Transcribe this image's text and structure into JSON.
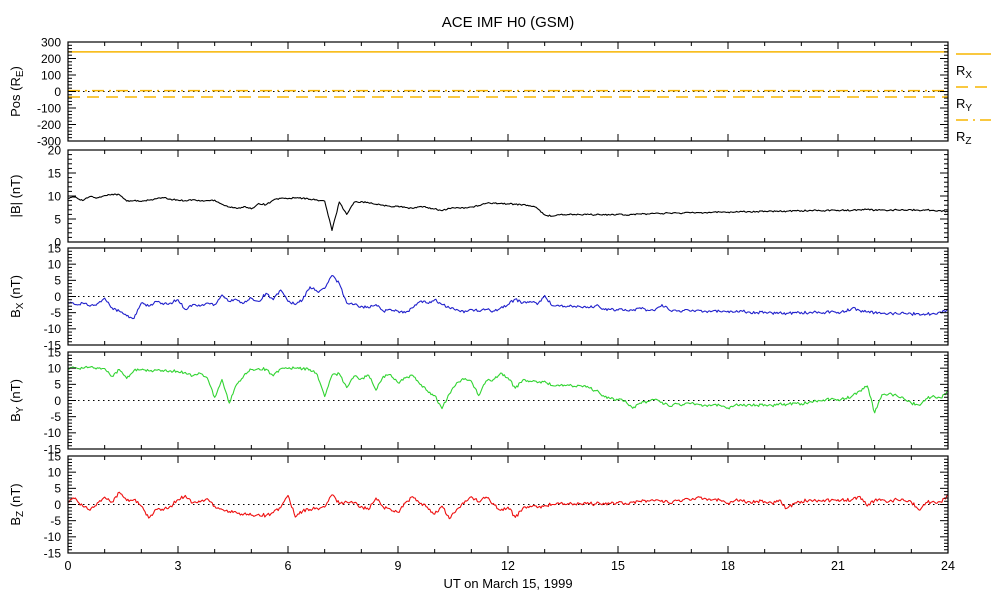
{
  "chart_data": {
    "type": "line",
    "title": "ACE IMF H0 (GSM)",
    "xlabel": "UT on March 15, 1999",
    "x_axis": {
      "min": 0,
      "max": 24,
      "major_ticks": [
        0,
        3,
        6,
        9,
        12,
        15,
        18,
        21,
        24
      ],
      "minor_step": 1
    },
    "sample_dt": 0.2,
    "axis_color": "#000000",
    "panels": [
      {
        "id": "pos",
        "ylabel": {
          "pre": "Pos (R",
          "sub": "E",
          "post": ")"
        },
        "ylim": [
          -300,
          300
        ],
        "yticks": [
          -300,
          -200,
          -100,
          0,
          100,
          200,
          300
        ],
        "yminor_step": 20,
        "zero_line": true,
        "color": "#f7b500",
        "ref_lines": [
          {
            "name": "R_X",
            "value": 240,
            "style": "solid"
          },
          {
            "name": "R_Y",
            "value": -33,
            "style": "dashed"
          },
          {
            "name": "R_Z",
            "value": 5,
            "style": "dashdot"
          }
        ]
      },
      {
        "id": "bmag",
        "ylabel": {
          "pre": "|B| (nT)",
          "sub": "",
          "post": ""
        },
        "ylim": [
          0,
          20
        ],
        "yticks": [
          0,
          5,
          10,
          15,
          20
        ],
        "yminor_step": 1,
        "zero_line": false,
        "color": "#000000",
        "noise": 0.16,
        "values": [
          9.5,
          9.8,
          9.0,
          9.9,
          9.6,
          10.1,
          10.4,
          10.3,
          8.9,
          9.0,
          8.8,
          9.1,
          9.4,
          9.6,
          9.3,
          9.1,
          9.0,
          9.2,
          8.9,
          9.0,
          9.1,
          8.2,
          7.6,
          7.3,
          7.7,
          7.2,
          8.4,
          8.1,
          9.1,
          9.5,
          9.4,
          9.6,
          9.5,
          9.3,
          9.1,
          8.9,
          2.5,
          8.7,
          6.0,
          8.6,
          8.8,
          8.5,
          8.2,
          8.0,
          7.7,
          7.8,
          7.5,
          7.3,
          7.7,
          7.5,
          7.2,
          6.8,
          7.3,
          7.5,
          7.3,
          7.6,
          7.9,
          8.4,
          8.5,
          8.4,
          8.3,
          8.2,
          8.1,
          7.9,
          7.3,
          5.9,
          5.6,
          5.9,
          5.9,
          6.0,
          5.9,
          6.0,
          5.9,
          6.0,
          5.9,
          6.0,
          5.9,
          6.0,
          6.1,
          6.1,
          6.2,
          6.2,
          6.3,
          6.3,
          6.3,
          6.4,
          6.4,
          6.4,
          6.5,
          6.5,
          6.5,
          6.5,
          6.6,
          6.6,
          6.6,
          6.7,
          6.7,
          6.7,
          6.7,
          6.8,
          6.8,
          6.8,
          6.9,
          6.8,
          6.9,
          6.9,
          6.9,
          6.9,
          7.0,
          7.1,
          6.9,
          7.0,
          6.9,
          7.0,
          6.9,
          7.0,
          6.9,
          7.0,
          6.9,
          6.8,
          6.6
        ]
      },
      {
        "id": "bx",
        "ylabel": {
          "pre": "B",
          "sub": "X",
          "post": " (nT)"
        },
        "ylim": [
          -15,
          15
        ],
        "yticks": [
          -15,
          -10,
          -5,
          0,
          5,
          10,
          15
        ],
        "yminor_step": 1,
        "zero_line": true,
        "color": "#2222cc",
        "noise": 0.45,
        "values": [
          -1.8,
          -2.5,
          -2.0,
          -3.0,
          -2.2,
          -0.5,
          -3.5,
          -4.5,
          -6.0,
          -6.8,
          -2.0,
          -3.0,
          -1.5,
          -2.5,
          -2.0,
          -1.0,
          -4.0,
          -2.5,
          -3.0,
          -2.0,
          -2.5,
          0.5,
          -1.5,
          -1.0,
          -2.0,
          -0.5,
          -1.5,
          1.0,
          -1.0,
          2.0,
          -1.5,
          -2.5,
          -1.0,
          3.0,
          1.5,
          2.5,
          6.5,
          4.0,
          -2.0,
          -2.5,
          -3.0,
          -3.5,
          -2.5,
          -4.5,
          -4.0,
          -4.5,
          -5.0,
          -3.5,
          -1.5,
          -2.0,
          -1.0,
          -2.5,
          -3.5,
          -4.0,
          -5.0,
          -4.0,
          -4.5,
          -4.0,
          -4.5,
          -3.5,
          -2.5,
          -0.8,
          -2.0,
          -1.5,
          -2.5,
          0.3,
          -2.8,
          -3.0,
          -3.2,
          -3.0,
          -3.3,
          -3.5,
          -2.8,
          -3.8,
          -4.0,
          -4.2,
          -4.0,
          -4.3,
          -3.5,
          -4.2,
          -4.4,
          -2.5,
          -4.2,
          -4.5,
          -4.3,
          -4.5,
          -4.2,
          -4.6,
          -4.4,
          -4.7,
          -4.5,
          -4.8,
          -4.6,
          -4.9,
          -5.0,
          -4.8,
          -5.1,
          -5.0,
          -5.2,
          -5.0,
          -4.9,
          -5.1,
          -4.8,
          -5.0,
          -4.7,
          -4.9,
          -4.6,
          -3.5,
          -4.4,
          -4.8,
          -5.0,
          -5.2,
          -5.1,
          -5.3,
          -5.2,
          -5.4,
          -5.3,
          -5.5,
          -5.2,
          -4.8,
          -4.2
        ]
      },
      {
        "id": "by",
        "ylabel": {
          "pre": "B",
          "sub": "Y",
          "post": " (nT)"
        },
        "ylim": [
          -15,
          15
        ],
        "yticks": [
          -15,
          -10,
          -5,
          0,
          5,
          10,
          15
        ],
        "yminor_step": 1,
        "zero_line": true,
        "color": "#33d433",
        "noise": 0.45,
        "values": [
          9.8,
          10.2,
          10.0,
          10.3,
          10.1,
          9.9,
          7.5,
          9.6,
          6.8,
          9.3,
          9.5,
          9.2,
          9.4,
          9.0,
          9.2,
          8.9,
          8.7,
          7.6,
          8.4,
          7.0,
          1.0,
          6.5,
          -0.8,
          5.0,
          7.8,
          9.6,
          9.9,
          9.7,
          7.6,
          9.8,
          9.9,
          10.0,
          9.8,
          9.6,
          8.0,
          1.2,
          7.8,
          8.3,
          4.0,
          7.5,
          6.8,
          7.8,
          3.2,
          7.5,
          8.0,
          5.5,
          7.0,
          7.8,
          5.0,
          3.0,
          1.5,
          -2.5,
          2.0,
          5.5,
          6.5,
          6.0,
          1.5,
          6.0,
          6.5,
          8.5,
          7.0,
          3.8,
          6.3,
          6.0,
          5.5,
          6.0,
          4.6,
          4.5,
          4.7,
          4.4,
          4.5,
          4.0,
          3.0,
          1.5,
          0.6,
          0.2,
          0.0,
          -2.4,
          -0.8,
          -0.3,
          0.3,
          -0.5,
          -1.8,
          -1.0,
          -1.3,
          -0.8,
          -1.2,
          -1.5,
          -1.3,
          -1.6,
          -2.3,
          -1.4,
          -1.6,
          -1.2,
          -1.5,
          -1.3,
          -1.6,
          -1.0,
          -1.2,
          -0.8,
          -1.0,
          -0.6,
          -0.2,
          0.2,
          0.4,
          0.3,
          0.6,
          1.5,
          3.0,
          4.5,
          -3.8,
          1.8,
          2.2,
          1.5,
          0.5,
          -0.8,
          -1.4,
          0.5,
          1.5,
          0.8,
          2.8
        ]
      },
      {
        "id": "bz",
        "ylabel": {
          "pre": "B",
          "sub": "Z",
          "post": " (nT)"
        },
        "ylim": [
          -15,
          15
        ],
        "yticks": [
          -15,
          -10,
          -5,
          0,
          5,
          10,
          15
        ],
        "yminor_step": 1,
        "zero_line": true,
        "color": "#ee1111",
        "noise": 0.55,
        "values": [
          0.8,
          2.0,
          -0.5,
          -1.8,
          0.5,
          2.3,
          0.8,
          3.8,
          1.2,
          1.5,
          -0.5,
          -4.2,
          -1.5,
          -1.8,
          -0.5,
          1.5,
          2.8,
          0.5,
          0.8,
          1.8,
          -0.5,
          -1.5,
          -2.2,
          -2.6,
          -2.9,
          -3.3,
          -3.0,
          -3.4,
          -2.5,
          -1.0,
          2.8,
          -3.9,
          -2.0,
          -1.5,
          -1.2,
          -0.8,
          3.0,
          0.3,
          0.8,
          0.5,
          -0.6,
          -1.6,
          2.0,
          -0.8,
          -1.5,
          -2.4,
          0.5,
          2.4,
          0.3,
          -0.8,
          -3.0,
          -0.5,
          -4.4,
          -1.5,
          0.3,
          2.4,
          0.8,
          2.3,
          0.3,
          -1.8,
          -0.8,
          -4.0,
          -1.2,
          -0.5,
          -1.0,
          -0.3,
          0.0,
          0.2,
          0.0,
          0.2,
          0.1,
          0.3,
          0.2,
          0.4,
          0.3,
          0.5,
          0.4,
          0.7,
          1.0,
          1.2,
          1.1,
          1.3,
          0.4,
          1.2,
          1.5,
          1.4,
          2.4,
          1.8,
          1.5,
          1.3,
          0.4,
          1.3,
          1.0,
          0.8,
          1.0,
          0.9,
          0.4,
          1.4,
          -1.2,
          0.3,
          1.0,
          1.3,
          1.1,
          1.4,
          1.2,
          1.5,
          1.3,
          1.6,
          2.5,
          -0.5,
          1.3,
          1.5,
          1.0,
          1.6,
          1.2,
          0.8,
          -1.6,
          0.6,
          1.0,
          0.8,
          2.8
        ]
      }
    ],
    "legend": [
      {
        "pre": "R",
        "sub": "X",
        "style": "solid"
      },
      {
        "pre": "R",
        "sub": "Y",
        "style": "dashed"
      },
      {
        "pre": "R",
        "sub": "Z",
        "style": "dashdot"
      }
    ]
  }
}
